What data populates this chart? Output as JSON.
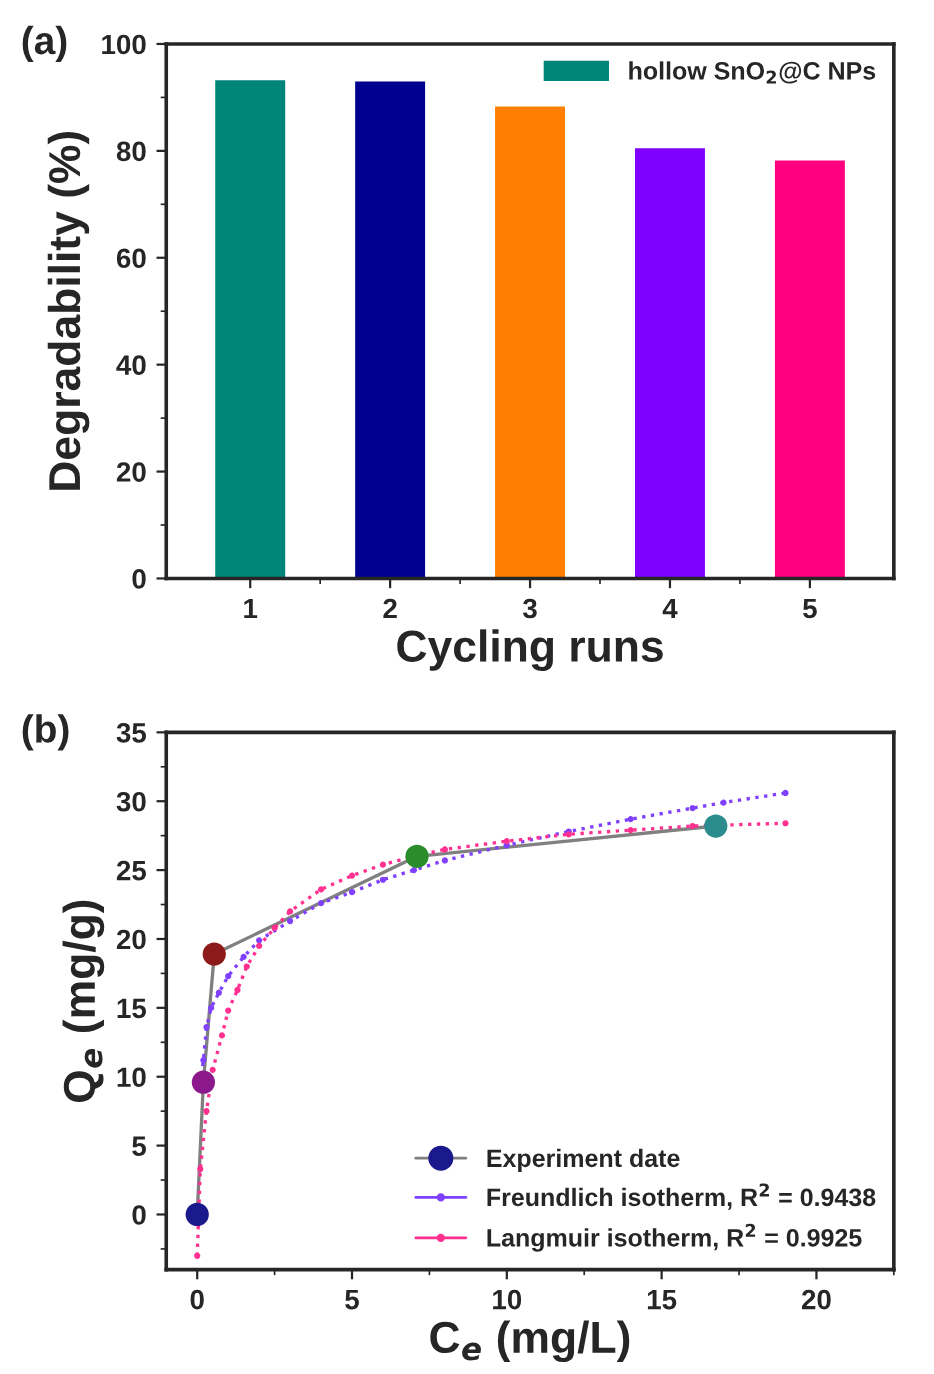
{
  "chart_data": [
    {
      "type": "bar",
      "xlabel": "Cycling runs",
      "ylabel": "Degradability (%)",
      "annotations": [
        "(a)"
      ],
      "categories": [
        "1",
        "2",
        "3",
        "4",
        "5"
      ],
      "series": [
        {
          "name": "hollow SnO$_{2}$@C NPs",
          "color": "#00857a",
          "colors": [
            "#00857a",
            "#000090",
            "#ff8000",
            "#8000ff",
            "#ff0080"
          ],
          "values": [
            93.2,
            93.0,
            88.3,
            80.5,
            78.2
          ]
        }
      ],
      "ylim": [
        0,
        100
      ],
      "yticks": [
        0,
        20,
        40,
        60,
        80,
        100
      ],
      "legend": "top right",
      "grid": false
    },
    {
      "type": "line",
      "xlabel": "C$_{e}$ (mg/L)",
      "ylabel": "Q$_{e}$ (mg/g)",
      "annotations": [
        "(b)"
      ],
      "series": [
        {
          "name": "Experiment date",
          "type": "line",
          "marker": "circle",
          "color": "#808080",
          "colors": [
            "#1a1a8c",
            "#8c1a8c",
            "#8c1a1a",
            "#2a8c2a",
            "#2a8c8c"
          ],
          "x": [
            0,
            0.2,
            0.55,
            7.1,
            16.75
          ],
          "values": [
            0,
            9.6,
            18.9,
            26.0,
            28.2
          ]
        },
        {
          "name": "Freundlich isotherm, R$^{2}$ = 0.9438",
          "type": "line",
          "marker": "circle",
          "line_style": "dotted",
          "color": "#8040ff",
          "x": [
            0.1,
            0.2,
            0.3,
            0.45,
            0.7,
            1,
            1.5,
            2,
            3,
            4,
            5,
            6,
            7,
            8,
            10,
            12,
            14,
            16,
            17,
            19
          ],
          "values": [
            9.5,
            11.2,
            13.6,
            15.0,
            16.1,
            17.3,
            18.7,
            19.9,
            21.3,
            22.6,
            23.4,
            24.3,
            25.0,
            25.7,
            26.8,
            27.8,
            28.7,
            29.5,
            29.9,
            30.6
          ]
        },
        {
          "name": "Langmuir isotherm, R$^{2}$ = 0.9925",
          "type": "line",
          "marker": "circle",
          "line_style": "dotted",
          "color": "#ff3090",
          "x": [
            0,
            0.1,
            0.3,
            0.5,
            0.8,
            1,
            1.3,
            1.6,
            2,
            2.5,
            3,
            4,
            5,
            6,
            7,
            8,
            10,
            12,
            14,
            16,
            19
          ],
          "values": [
            -3,
            3.3,
            7.5,
            10.5,
            13.0,
            14.8,
            16.3,
            18.0,
            19.5,
            20.8,
            22.0,
            23.6,
            24.6,
            25.4,
            26.0,
            26.5,
            27.1,
            27.6,
            27.9,
            28.2,
            28.4
          ]
        }
      ],
      "xlim": [
        -1,
        22.5
      ],
      "xticks": [
        0,
        5,
        10,
        15,
        20
      ],
      "ylim": [
        -4,
        35
      ],
      "yticks": [
        0,
        5,
        10,
        15,
        20,
        25,
        30,
        35
      ],
      "legend": "bottom right",
      "grid": false
    }
  ]
}
